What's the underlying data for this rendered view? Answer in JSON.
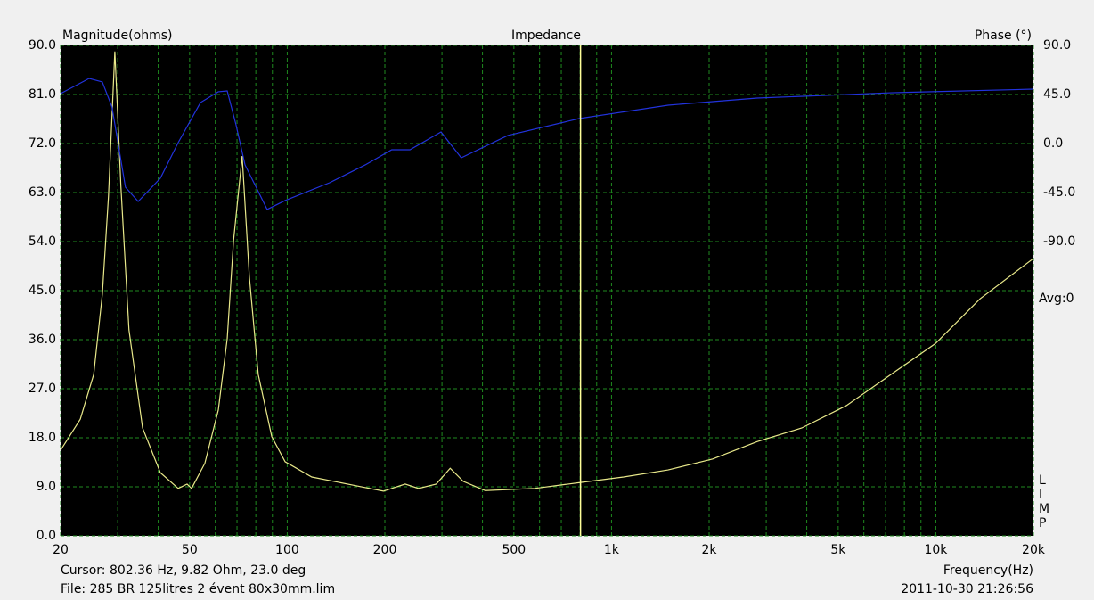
{
  "chart_data": {
    "type": "line",
    "title": "Impedance",
    "y_label": "Magnitude(ohms)",
    "y2_label": "Phase (°)",
    "x_label": "Frequency(Hz)",
    "avg_label": "Avg:0",
    "side_letters": [
      "L",
      "I",
      "M",
      "P"
    ],
    "cursor": {
      "label": "Cursor: 802.36 Hz, 9.82 Ohm, 23.0 deg",
      "x": 802.36,
      "color": "#ffff99"
    },
    "file_label": "File: 285 BR 125litres 2 évent 80x30mm.lim",
    "timestamp": "2011-10-30 21:26:56",
    "xscale": "log",
    "grid": true,
    "xlim": [
      20,
      20000
    ],
    "xticks": [
      20,
      50,
      100,
      200,
      500,
      {
        "value": 1000,
        "label": "1k"
      },
      {
        "value": 2000,
        "label": "2k"
      },
      {
        "value": 5000,
        "label": "5k"
      },
      {
        "value": 10000,
        "label": "10k"
      },
      {
        "value": 20000,
        "label": "20k"
      }
    ],
    "xminorticks": [
      30,
      40,
      60,
      70,
      80,
      90,
      300,
      400,
      600,
      700,
      800,
      900,
      3000,
      4000,
      6000,
      7000,
      8000,
      9000
    ],
    "ylim": [
      0,
      90
    ],
    "yticks": [
      {
        "value": 0,
        "label": "0.0"
      },
      {
        "value": 9,
        "label": "9.0"
      },
      {
        "value": 18,
        "label": "18.0"
      },
      {
        "value": 27,
        "label": "27.0"
      },
      {
        "value": 36,
        "label": "36.0"
      },
      {
        "value": 45,
        "label": "45.0"
      },
      {
        "value": 54,
        "label": "54.0"
      },
      {
        "value": 63,
        "label": "63.0"
      },
      {
        "value": 72,
        "label": "72.0"
      },
      {
        "value": 81,
        "label": "81.0"
      },
      {
        "value": 90,
        "label": "90.0"
      }
    ],
    "y2lim": [
      -360,
      90
    ],
    "y2ticks": [
      {
        "value": 90,
        "label": "90.0"
      },
      {
        "value": 45,
        "label": "45.0"
      },
      {
        "value": 0,
        "label": "0.0"
      },
      {
        "value": -45,
        "label": "-45.0"
      },
      {
        "value": -90,
        "label": "-90.0"
      }
    ],
    "series": [
      {
        "color": "#e8e88a",
        "x": [
          20,
          23.0,
          25.3,
          26.9,
          28.1,
          29.4,
          30.7,
          32.5,
          35.8,
          40.6,
          46.1,
          49.1,
          50.7,
          55.7,
          61.3,
          65.3,
          68.3,
          72.6,
          76.4,
          81.4,
          89.6,
          98.5,
          119,
          163,
          198,
          231,
          254,
          288,
          318,
          349,
          408,
          580,
          803,
          1089,
          1495,
          2051,
          2813,
          3862,
          5300,
          7266,
          9980,
          13690,
          20000
        ],
        "values": [
          15.7,
          21.4,
          29.6,
          44.3,
          62.3,
          88.9,
          64,
          37.8,
          19.8,
          11.6,
          8.7,
          9.5,
          8.7,
          13.3,
          23.1,
          36.2,
          54.2,
          69.7,
          47.6,
          29.6,
          18.2,
          13.6,
          10.8,
          9.2,
          8.2,
          9.5,
          8.7,
          9.5,
          12.4,
          10.0,
          8.3,
          8.7,
          9.8,
          10.8,
          12.1,
          14.1,
          17.3,
          19.8,
          23.9,
          29.6,
          35.3,
          43.5,
          50.9
        ]
      },
      {
        "color": "#2233dd",
        "axis": "y2",
        "x": [
          20,
          24.5,
          26.9,
          28.8,
          31.7,
          34.7,
          40.6,
          46.1,
          54.0,
          61.3,
          65.3,
          69.5,
          74.1,
          86.7,
          98.5,
          135,
          174,
          210,
          239,
          298,
          344,
          479,
          794,
          1495,
          2813,
          7266,
          20000
        ],
        "values": [
          45.8,
          59.7,
          56.5,
          33.6,
          -40.1,
          -53.2,
          -31.9,
          0.8,
          37.6,
          47.5,
          48.3,
          17.2,
          -19.6,
          -60.5,
          -52.3,
          -36,
          -19.6,
          -5.7,
          -5.7,
          10.6,
          -13.1,
          7.4,
          22.9,
          35.2,
          41.7,
          46.6,
          49.9
        ]
      }
    ]
  }
}
